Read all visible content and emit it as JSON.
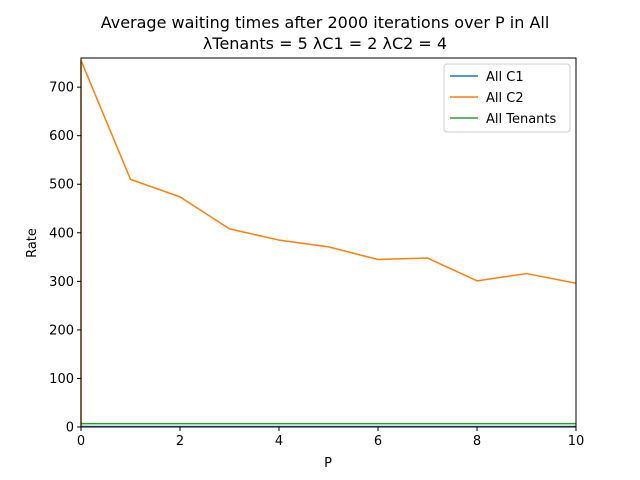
{
  "chart_data": {
    "type": "line",
    "title": "Average waiting times after 2000 iterations over P in All",
    "subtitle": "λTenants = 5 λC1 = 2 λC2 = 4",
    "xlabel": "P",
    "ylabel": "Rate",
    "xlim": [
      0,
      10
    ],
    "ylim": [
      0,
      760
    ],
    "xticks": [
      0,
      2,
      4,
      6,
      8,
      10
    ],
    "yticks": [
      0,
      100,
      200,
      300,
      400,
      500,
      600,
      700
    ],
    "grid": false,
    "legend_position": "top-right",
    "x": [
      0,
      1,
      2,
      3,
      4,
      5,
      6,
      7,
      8,
      9,
      10
    ],
    "series": [
      {
        "name": "All C1",
        "color": "#1f77b4",
        "values": [
          1,
          1,
          1,
          1,
          1,
          1,
          1,
          1,
          1,
          1,
          1
        ]
      },
      {
        "name": "All C2",
        "color": "#ff7f0e",
        "values": [
          755,
          510,
          474,
          408,
          385,
          371,
          345,
          348,
          301,
          316,
          296
        ]
      },
      {
        "name": "All Tenants",
        "color": "#2ca02c",
        "values": [
          7,
          7,
          7,
          7,
          7,
          7,
          7,
          7,
          7,
          7,
          7
        ]
      }
    ],
    "annotations": [
      {
        "series": "All C2",
        "note": "vertical segment at P = 0 from 0 to 755"
      }
    ]
  }
}
